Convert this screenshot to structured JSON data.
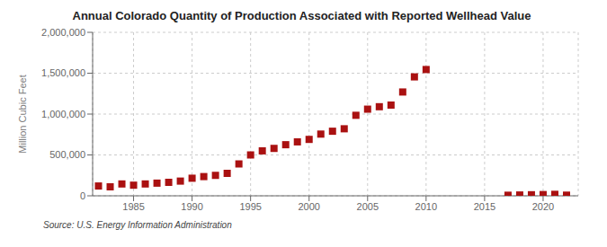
{
  "chart_data": {
    "type": "scatter",
    "title": "Annual Colorado Quantity of Production Associated with Reported Wellhead Value",
    "ylabel": "Million Cubic Feet",
    "source": "Source: U.S. Energy Information Administration",
    "x": [
      1982,
      1983,
      1984,
      1985,
      1986,
      1987,
      1988,
      1989,
      1990,
      1991,
      1992,
      1993,
      1994,
      1995,
      1996,
      1997,
      1998,
      1999,
      2000,
      2001,
      2002,
      2003,
      2004,
      2005,
      2006,
      2007,
      2008,
      2009,
      2010,
      2017,
      2018,
      2019,
      2020,
      2021,
      2022
    ],
    "values": [
      120000,
      110000,
      145000,
      130000,
      145000,
      155000,
      165000,
      180000,
      215000,
      235000,
      250000,
      275000,
      390000,
      500000,
      550000,
      580000,
      625000,
      660000,
      690000,
      755000,
      790000,
      820000,
      985000,
      1060000,
      1090000,
      1110000,
      1270000,
      1455000,
      1545000,
      7000,
      10000,
      13000,
      15000,
      18000,
      8000
    ],
    "color": "#aa1111",
    "marker": "square",
    "xlim": [
      1981.5,
      2023
    ],
    "xticks": [
      1985,
      1990,
      1995,
      2000,
      2005,
      2010,
      2015,
      2020
    ],
    "ylim": [
      0,
      2000000
    ],
    "yticks": [
      0,
      {
        "value": 500000,
        "label": "500,000"
      },
      {
        "value": 1000000,
        "label": "1,000,000"
      },
      {
        "value": 1500000,
        "label": "1,500,000"
      },
      {
        "value": 2000000,
        "label": "2,000,000"
      }
    ],
    "grid": true
  }
}
